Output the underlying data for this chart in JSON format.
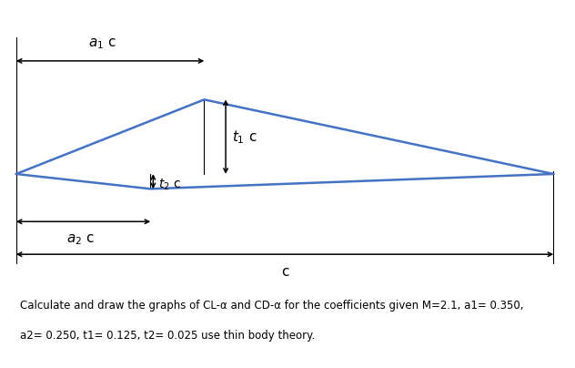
{
  "caption_line1": "Calculate and draw the graphs of CL-α and CD-α for the coefficients given M=2.1, a1= 0.350,",
  "caption_line2": "a2= 0.250, t1= 0.125, t2= 0.025 use thin body theory.",
  "a1": 0.35,
  "a2": 0.25,
  "t1": 0.125,
  "t2": 0.025,
  "c": 1.0,
  "airfoil_color": "#4472C4",
  "airfoil_linewidth": 1.8,
  "arrow_color": "#000000",
  "background_color": "#ffffff",
  "text_color": "#000000",
  "figsize": [
    6.32,
    4.04
  ],
  "dpi": 100,
  "caption_fontsize": 8.5,
  "label_fontsize": 11
}
